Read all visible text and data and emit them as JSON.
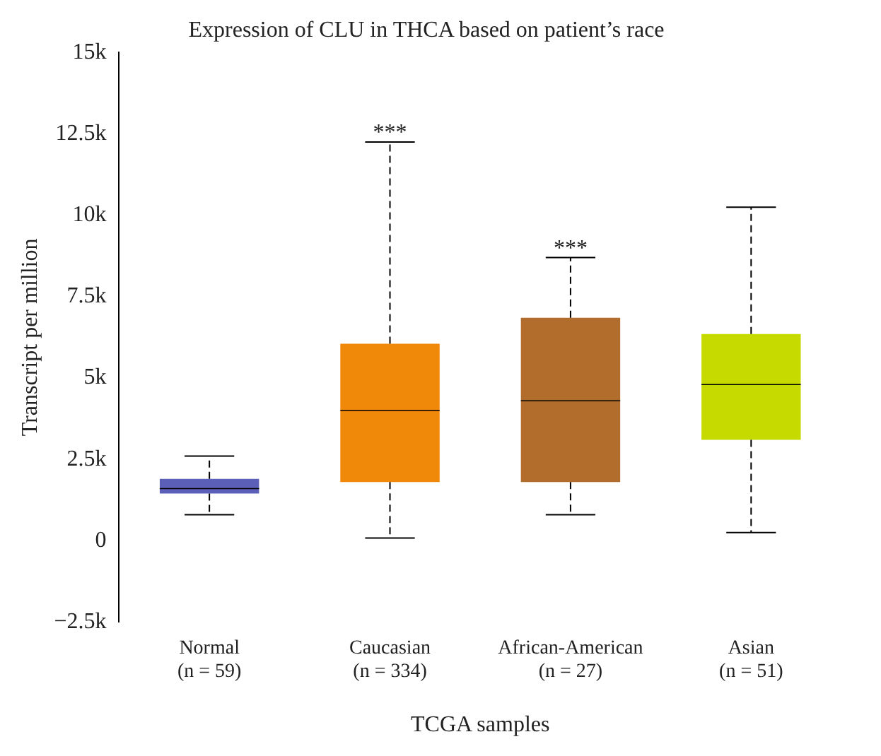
{
  "chart_data": {
    "type": "box",
    "title": "Expression of CLU in THCA based on patient’s race",
    "xlabel": "TCGA samples",
    "ylabel": "Transcript per million",
    "categories": [
      "Normal\n(n = 59)",
      "Caucasian\n(n = 334)",
      "African-American\n(n = 27)",
      "Asian\n(n = 51)"
    ],
    "colors": [
      "#5b5fb8",
      "#f0880a",
      "#b26c2b",
      "#c6da00"
    ],
    "boxes": [
      {
        "low": 800,
        "q1": 1450,
        "median": 1600,
        "q3": 1900,
        "high": 2600
      },
      {
        "low": 80,
        "q1": 1800,
        "median": 4000,
        "q3": 6050,
        "high": 12250
      },
      {
        "low": 800,
        "q1": 1800,
        "median": 4300,
        "q3": 6850,
        "high": 8700
      },
      {
        "low": 250,
        "q1": 3100,
        "median": 4800,
        "q3": 6350,
        "high": 10250
      }
    ],
    "ylim": [
      -2500,
      15000
    ],
    "yticks": [
      {
        "value": -2500,
        "label": "−2.5k"
      },
      0,
      {
        "value": 2500,
        "label": "2.5k"
      },
      {
        "value": 5000,
        "label": "5k"
      },
      {
        "value": 7500,
        "label": "7.5k"
      },
      {
        "value": 10000,
        "label": "10k"
      },
      {
        "value": 12500,
        "label": "12.5k"
      },
      {
        "value": 15000,
        "label": "15k"
      }
    ],
    "grid": false,
    "legend": false,
    "annotations": [
      {
        "text": "***",
        "x": "Caucasian\n(n = 334)",
        "y": 12250
      },
      {
        "text": "***",
        "x": "African-American\n(n = 27)",
        "y": 8700
      }
    ]
  }
}
